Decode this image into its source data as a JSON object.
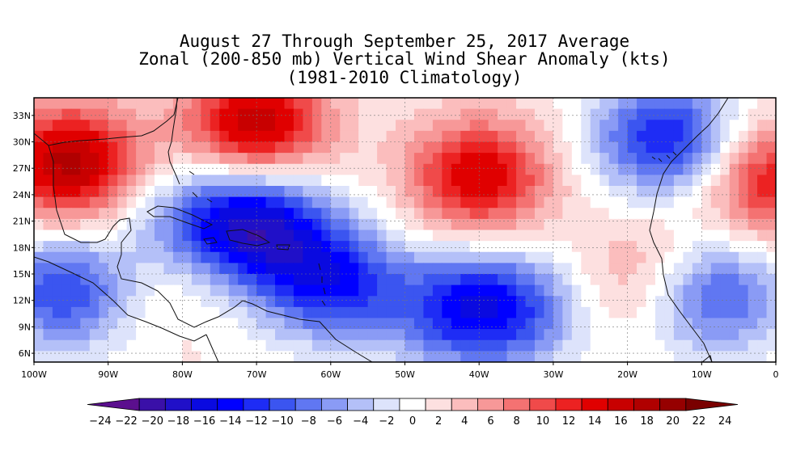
{
  "title": {
    "line1": "August 27 Through September 25, 2017 Average",
    "line2": "Zonal (200-850 mb) Vertical Wind Shear Anomaly (kts)",
    "line3": "(1981-2010 Climatology)"
  },
  "axes": {
    "lat_labels": [
      "33N",
      "30N",
      "27N",
      "24N",
      "21N",
      "18N",
      "15N",
      "12N",
      "9N",
      "6N"
    ],
    "lon_labels": [
      "100W",
      "90W",
      "80W",
      "70W",
      "60W",
      "50W",
      "40W",
      "30W",
      "20W",
      "10W",
      "0"
    ]
  },
  "colorbar": {
    "tick_labels": [
      "-24",
      "-22",
      "-20",
      "-18",
      "-16",
      "-14",
      "-12",
      "-10",
      "-8",
      "-6",
      "-4",
      "-2",
      "0",
      "2",
      "4",
      "6",
      "8",
      "10",
      "12",
      "14",
      "16",
      "18",
      "20",
      "22",
      "24"
    ],
    "colors": [
      "#5b0f8e",
      "#3a10a8",
      "#2010c8",
      "#0a0ae0",
      "#0000ff",
      "#1e2cf5",
      "#3b55f0",
      "#6077f2",
      "#8a9bf5",
      "#b4c0f8",
      "#dde3fb",
      "#ffffff",
      "#fde0e0",
      "#fbbdbd",
      "#f79898",
      "#f47272",
      "#f04a4a",
      "#ec2222",
      "#e00000",
      "#c80000",
      "#b00000",
      "#960000",
      "#7a0000"
    ]
  },
  "field": {
    "centers": [
      {
        "lon": -70,
        "lat": 20.5,
        "value": -17
      },
      {
        "lon": -60,
        "lat": 14,
        "value": -14
      },
      {
        "lon": -80,
        "lat": 21,
        "value": -6
      },
      {
        "lon": -96,
        "lat": 13,
        "value": -12
      },
      {
        "lon": -43,
        "lat": 11,
        "value": -11
      },
      {
        "lon": -35,
        "lat": 11,
        "value": -9
      },
      {
        "lon": -15,
        "lat": 30.5,
        "value": -14
      },
      {
        "lon": -8,
        "lat": 12.5,
        "value": -11
      },
      {
        "lon": -95,
        "lat": 27.5,
        "value": 17
      },
      {
        "lon": -70,
        "lat": 32,
        "value": 16
      },
      {
        "lon": -40,
        "lat": 26,
        "value": 14
      },
      {
        "lon": 0,
        "lat": 25.5,
        "value": 12
      },
      {
        "lon": -18,
        "lat": 15,
        "value": 5
      },
      {
        "lon": -83,
        "lat": 14.5,
        "value": 2
      }
    ],
    "lon_range": [
      -100,
      0
    ],
    "lat_range": [
      5,
      35
    ]
  }
}
